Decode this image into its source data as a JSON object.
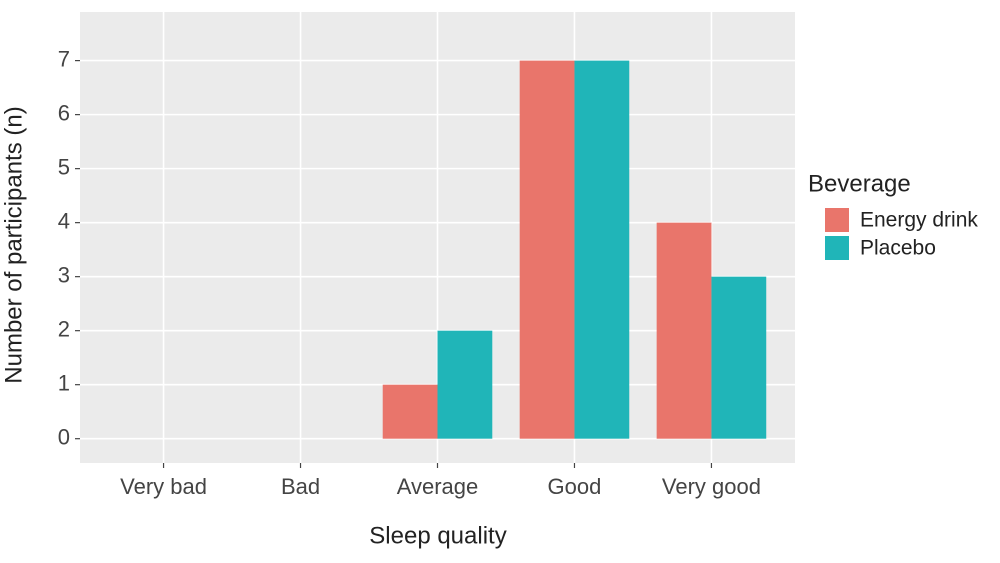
{
  "chart_data": {
    "type": "bar",
    "x_label": "Sleep quality",
    "y_label": "Number of participants (n)",
    "categories": [
      "Very bad",
      "Bad",
      "Average",
      "Good",
      "Very good"
    ],
    "series": [
      {
        "name": "Energy drink",
        "color": "#e9756b",
        "values": [
          0,
          0,
          1,
          7,
          4
        ]
      },
      {
        "name": "Placebo",
        "color": "#20b5b8",
        "values": [
          0,
          0,
          2,
          7,
          3
        ]
      }
    ],
    "legend_title": "Beverage",
    "legend_position": "right",
    "ylim": [
      -0.45,
      7.9
    ],
    "yticks": [
      0,
      1,
      2,
      3,
      4,
      5,
      6,
      7
    ],
    "grid": true
  }
}
